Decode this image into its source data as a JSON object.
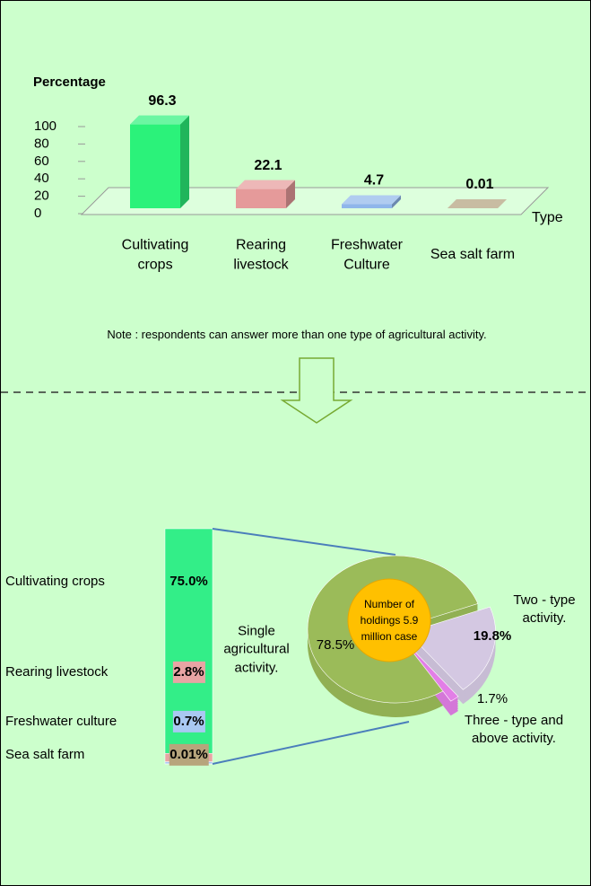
{
  "chart_data": [
    {
      "type": "bar3d",
      "y_label": "Percentage",
      "x_label": "Type",
      "categories": [
        "Cultivating crops",
        "Rearing livestock",
        "Freshwater Culture",
        "Sea salt farm"
      ],
      "values": [
        96.3,
        22.1,
        4.7,
        0.01
      ],
      "colors": [
        "#2bf27a",
        "#e59a9a",
        "#8fb6ea",
        "#b0a07a"
      ],
      "ylim": [
        0,
        100
      ],
      "yticks": [
        0,
        20,
        40,
        60,
        80,
        100
      ],
      "note": "Note : respondents can answer  more than one type of agricultural activity."
    },
    {
      "type": "stacked",
      "categories": [
        "Cultivating  crops",
        "Rearing  livestock",
        "Freshwater culture",
        "Sea salt farm"
      ],
      "values": [
        75.0,
        2.8,
        0.7,
        0.01
      ],
      "value_labels": [
        "75.0%",
        "2.8%",
        "0.7%",
        "0.01%"
      ],
      "colors": [
        "#33ee88",
        "#e8a4a4",
        "#a9c8f2",
        "#b7a57c"
      ]
    },
    {
      "type": "pie",
      "categories": [
        "Single agricultural activity.",
        "Two - type activity.",
        "Three - type and above activity."
      ],
      "values": [
        78.5,
        19.8,
        1.7
      ],
      "value_labels": [
        "78.5%",
        "19.8%",
        "1.7%"
      ],
      "colors": [
        "#9bbb59",
        "#d4c8e2",
        "#e27fe6"
      ],
      "center_label": "Number of holdings 5.9 million case"
    }
  ]
}
